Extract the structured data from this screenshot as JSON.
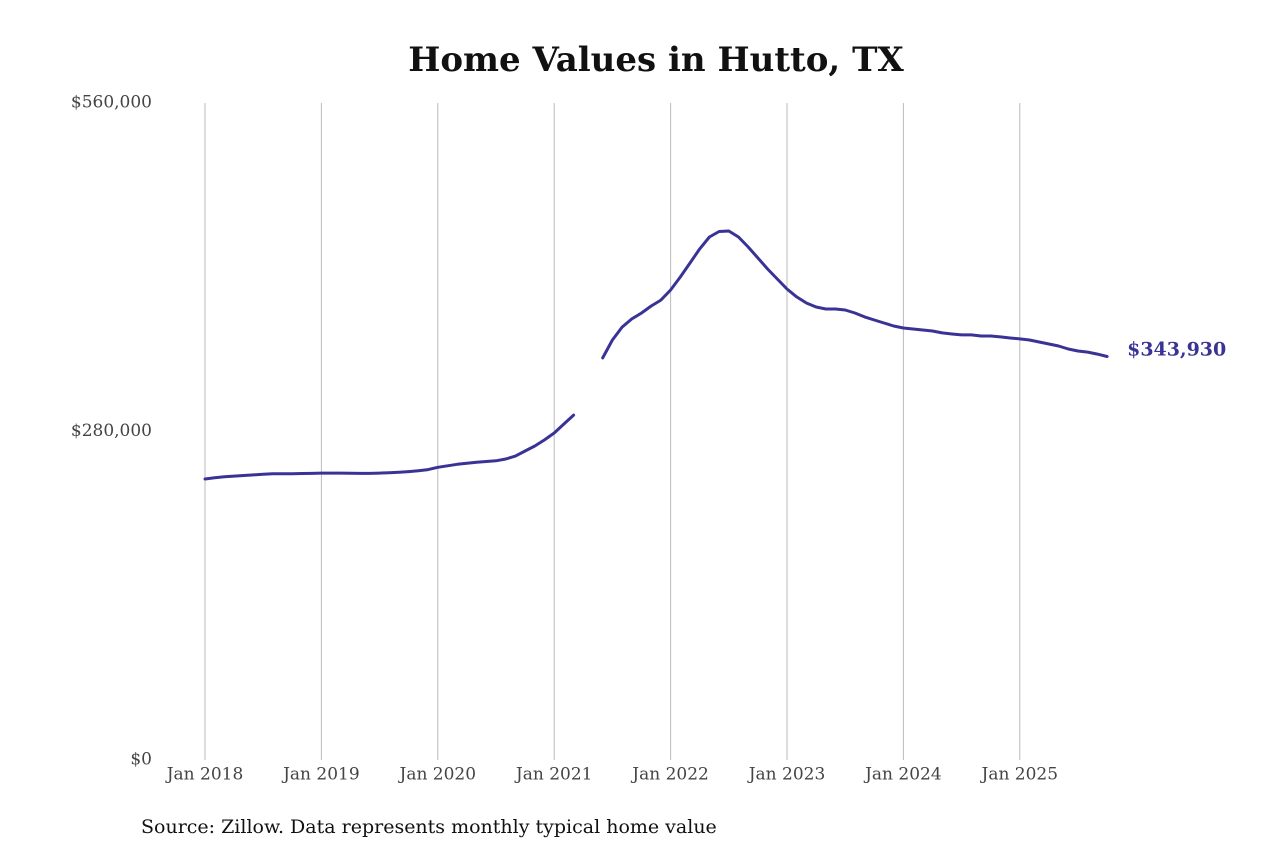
{
  "chart_data": {
    "type": "line",
    "title": "Home Values in Hutto, TX",
    "note": "Source: Zillow. Data represents monthly typical home value",
    "color": "#3a3396",
    "x": [
      "2018-01",
      "2018-02",
      "2018-03",
      "2018-04",
      "2018-05",
      "2018-06",
      "2018-07",
      "2018-08",
      "2018-09",
      "2018-10",
      "2018-11",
      "2018-12",
      "2019-01",
      "2019-02",
      "2019-03",
      "2019-04",
      "2019-05",
      "2019-06",
      "2019-07",
      "2019-08",
      "2019-09",
      "2019-10",
      "2019-11",
      "2019-12",
      "2020-01",
      "2020-02",
      "2020-03",
      "2020-04",
      "2020-05",
      "2020-06",
      "2020-07",
      "2020-08",
      "2020-09",
      "2020-10",
      "2020-11",
      "2020-12",
      "2021-01",
      "2021-02",
      "2021-03",
      "2021-04",
      "2021-05",
      "2021-06",
      "2021-07",
      "2021-08",
      "2021-09",
      "2021-10",
      "2021-11",
      "2021-12",
      "2022-01",
      "2022-02",
      "2022-03",
      "2022-04",
      "2022-05",
      "2022-06",
      "2022-07",
      "2022-08",
      "2022-09",
      "2022-10",
      "2022-11",
      "2022-12",
      "2023-01",
      "2023-02",
      "2023-03",
      "2023-04",
      "2023-05",
      "2023-06",
      "2023-07",
      "2023-08",
      "2023-09",
      "2023-10",
      "2023-11",
      "2023-12",
      "2024-01",
      "2024-02",
      "2024-03",
      "2024-04",
      "2024-05",
      "2024-06",
      "2024-07",
      "2024-08",
      "2024-09",
      "2024-10",
      "2024-11",
      "2024-12",
      "2025-01",
      "2025-02",
      "2025-03",
      "2025-04",
      "2025-05",
      "2025-06",
      "2025-07",
      "2025-08",
      "2025-09",
      "2025-10"
    ],
    "values": [
      239500,
      240500,
      241500,
      242000,
      242500,
      243000,
      243500,
      244000,
      244000,
      244000,
      244200,
      244300,
      244500,
      244500,
      244500,
      244400,
      244300,
      244300,
      244500,
      244800,
      245200,
      245800,
      246600,
      247500,
      249500,
      250800,
      252000,
      253000,
      253800,
      254400,
      255000,
      256600,
      259000,
      263400,
      267600,
      272800,
      278700,
      286400,
      294000,
      null,
      null,
      342700,
      358000,
      369000,
      376000,
      381000,
      387000,
      392000,
      400600,
      411700,
      423600,
      435600,
      445800,
      450500,
      450900,
      445800,
      437300,
      427900,
      418500,
      410000,
      401500,
      394700,
      389500,
      386100,
      384400,
      384400,
      383600,
      381000,
      377700,
      375000,
      372500,
      369900,
      368200,
      367400,
      366500,
      365700,
      364000,
      363100,
      362300,
      362300,
      361400,
      361400,
      360600,
      359700,
      358900,
      358000,
      356300,
      354600,
      352900,
      350300,
      348600,
      347700,
      346000,
      343930
    ],
    "value_labels": [
      null,
      null,
      null,
      null,
      null,
      null,
      null,
      null,
      null,
      null,
      null,
      null,
      null,
      null,
      null,
      null,
      null,
      null,
      null,
      null,
      null,
      null,
      null,
      null,
      null,
      null,
      null,
      null,
      null,
      null,
      null,
      null,
      null,
      null,
      null,
      null,
      null,
      null,
      null,
      null,
      null,
      null,
      null,
      null,
      null,
      null,
      null,
      null,
      null,
      null,
      null,
      null,
      null,
      null,
      null,
      null,
      null,
      null,
      null,
      null,
      null,
      null,
      null,
      null,
      null,
      null,
      null,
      null,
      null,
      null,
      null,
      null,
      null,
      null,
      null,
      null,
      null,
      null,
      null,
      null,
      null,
      null,
      null,
      null,
      null,
      null,
      null,
      null,
      null,
      null,
      null,
      null,
      null,
      "$343,930"
    ],
    "xticks": [
      {
        "value": "2018-01",
        "label": "Jan 2018"
      },
      {
        "value": "2019-01",
        "label": "Jan 2019"
      },
      {
        "value": "2020-01",
        "label": "Jan 2020"
      },
      {
        "value": "2021-01",
        "label": "Jan 2021"
      },
      {
        "value": "2022-01",
        "label": "Jan 2022"
      },
      {
        "value": "2023-01",
        "label": "Jan 2023"
      },
      {
        "value": "2024-01",
        "label": "Jan 2024"
      },
      {
        "value": "2025-01",
        "label": "Jan 2025"
      }
    ],
    "ylim": [
      0,
      560000
    ],
    "yticks": [
      {
        "value": 0,
        "label": "$0"
      },
      {
        "value": 280000,
        "label": "$280,000"
      },
      {
        "value": 560000,
        "label": "$560,000"
      }
    ],
    "grid": "x"
  }
}
